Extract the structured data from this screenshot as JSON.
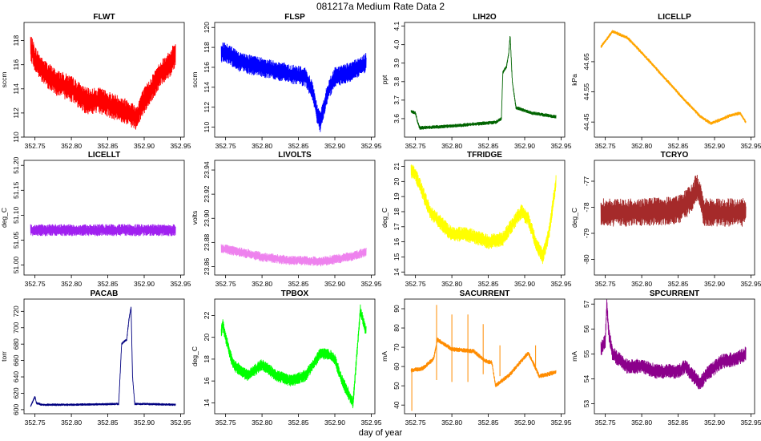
{
  "figure": {
    "title": "081217a   Medium Rate Data 2",
    "xlabel": "day of year"
  },
  "chart_data": [
    {
      "type": "line",
      "title": "FLWT",
      "ylabel": "sccm",
      "color": "#ff0000",
      "xlim": [
        352.735,
        352.955
      ],
      "ylim": [
        110,
        119.5
      ],
      "xticks": [
        352.75,
        352.8,
        352.85,
        352.9,
        352.95
      ],
      "yticks": [
        110,
        112,
        114,
        116,
        118
      ],
      "noise": 1.1,
      "series": [
        {
          "x": [
            352.744,
            352.75,
            352.76,
            352.78,
            352.8,
            352.82,
            352.84,
            352.86,
            352.88,
            352.89,
            352.895,
            352.91,
            352.925,
            352.935,
            352.943
          ],
          "y": [
            117.5,
            116.5,
            115.5,
            114.5,
            114.0,
            113.0,
            113.0,
            112.5,
            112.0,
            111.5,
            112.5,
            114.0,
            115.5,
            116.0,
            117.0
          ]
        }
      ]
    },
    {
      "type": "line",
      "title": "FLSP",
      "ylabel": "sccm",
      "color": "#0000ff",
      "xlim": [
        352.735,
        352.955
      ],
      "ylim": [
        109,
        120.5
      ],
      "xticks": [
        352.75,
        352.8,
        352.85,
        352.9,
        352.95
      ],
      "yticks": [
        110,
        112,
        114,
        116,
        118,
        120
      ],
      "noise": 1.0,
      "series": [
        {
          "x": [
            352.744,
            352.75,
            352.77,
            352.8,
            352.83,
            352.86,
            352.87,
            352.875,
            352.88,
            352.89,
            352.9,
            352.92,
            352.943
          ],
          "y": [
            117.5,
            117.5,
            116.5,
            116.0,
            115.5,
            115.0,
            113.5,
            111.5,
            110.5,
            113.5,
            115.0,
            115.5,
            116.5
          ]
        }
      ]
    },
    {
      "type": "line",
      "title": "LIH2O",
      "ylabel": "ppt",
      "color": "#006400",
      "xlim": [
        352.735,
        352.955
      ],
      "ylim": [
        3.5,
        4.12
      ],
      "xticks": [
        352.75,
        352.8,
        352.85,
        352.9,
        352.95
      ],
      "yticks": [
        3.6,
        3.7,
        3.8,
        3.9,
        4.0,
        4.1
      ],
      "noise": 0.01,
      "series": [
        {
          "x": [
            352.744,
            352.75,
            352.753,
            352.756,
            352.8,
            352.86,
            352.868,
            352.87,
            352.875,
            352.878,
            352.88,
            352.883,
            352.888,
            352.91,
            352.943
          ],
          "y": [
            3.64,
            3.63,
            3.58,
            3.55,
            3.56,
            3.58,
            3.6,
            3.85,
            3.88,
            3.95,
            4.05,
            3.8,
            3.66,
            3.63,
            3.61
          ]
        }
      ]
    },
    {
      "type": "line",
      "title": "LICELLP",
      "ylabel": "kPa",
      "color": "#ffa500",
      "xlim": [
        352.735,
        352.955
      ],
      "ylim": [
        44.4,
        44.78
      ],
      "xticks": [
        352.75,
        352.8,
        352.85,
        352.9,
        352.95
      ],
      "yticks": [
        44.45,
        44.55,
        44.65
      ],
      "noise": 0.006,
      "series": [
        {
          "x": [
            352.744,
            352.76,
            352.78,
            352.8,
            352.83,
            352.86,
            352.88,
            352.895,
            352.9,
            352.91,
            352.92,
            352.935,
            352.943
          ],
          "y": [
            44.7,
            44.75,
            44.73,
            44.68,
            44.6,
            44.52,
            44.47,
            44.445,
            44.45,
            44.46,
            44.47,
            44.48,
            44.45
          ]
        }
      ]
    },
    {
      "type": "line",
      "title": "LICELLT",
      "ylabel": "deg_C",
      "color": "#a020f0",
      "xlim": [
        352.735,
        352.955
      ],
      "ylim": [
        50.98,
        51.21
      ],
      "xticks": [
        352.75,
        352.8,
        352.85,
        352.9,
        352.95
      ],
      "yticks": [
        51.0,
        51.05,
        51.1,
        51.15,
        51.2
      ],
      "noise": 0.012,
      "series": [
        {
          "x": [
            352.744,
            352.943
          ],
          "y": [
            51.07,
            51.07
          ]
        }
      ]
    },
    {
      "type": "line",
      "title": "LIVOLTS",
      "ylabel": "volts",
      "color": "#ee82ee",
      "xlim": [
        352.735,
        352.955
      ],
      "ylim": [
        23.853,
        23.948
      ],
      "xticks": [
        352.75,
        352.8,
        352.85,
        352.9,
        352.95
      ],
      "yticks": [
        23.86,
        23.88,
        23.9,
        23.92,
        23.94
      ],
      "noise": 0.004,
      "series": [
        {
          "x": [
            352.744,
            352.77,
            352.8,
            352.84,
            352.86,
            352.88,
            352.9,
            352.92,
            352.943
          ],
          "y": [
            23.875,
            23.872,
            23.868,
            23.865,
            23.865,
            23.864,
            23.866,
            23.868,
            23.872
          ]
        }
      ]
    },
    {
      "type": "line",
      "title": "TFRIDGE",
      "ylabel": "deg_C",
      "color": "#ffff00",
      "xlim": [
        352.735,
        352.955
      ],
      "ylim": [
        13.8,
        21.4
      ],
      "xticks": [
        352.75,
        352.8,
        352.85,
        352.9,
        352.95
      ],
      "yticks": [
        14,
        15,
        16,
        17,
        18,
        19,
        20,
        21
      ],
      "noise": 0.5,
      "series": [
        {
          "x": [
            352.744,
            352.75,
            352.77,
            352.8,
            352.82,
            352.85,
            352.87,
            352.885,
            352.895,
            352.905,
            352.915,
            352.925,
            352.933,
            352.943
          ],
          "y": [
            20.7,
            20.5,
            18.0,
            16.5,
            16.5,
            16.0,
            16.2,
            17.3,
            18.0,
            17.5,
            16.0,
            15.0,
            16.5,
            20.0
          ]
        }
      ]
    },
    {
      "type": "line",
      "title": "TCRYO",
      "ylabel": "deg_C",
      "color": "#a52a2a",
      "xlim": [
        352.735,
        352.955
      ],
      "ylim": [
        -80.6,
        -76.2
      ],
      "xticks": [
        352.75,
        352.8,
        352.85,
        352.9,
        352.95
      ],
      "yticks": [
        -80,
        -79,
        -78,
        -77
      ],
      "noise": 0.55,
      "series": [
        {
          "x": [
            352.744,
            352.8,
            352.85,
            352.86,
            352.87,
            352.875,
            352.88,
            352.885,
            352.9,
            352.943
          ],
          "y": [
            -78.2,
            -78.2,
            -78.1,
            -77.9,
            -77.6,
            -77.2,
            -77.5,
            -78.2,
            -78.2,
            -78.2
          ]
        }
      ]
    },
    {
      "type": "line",
      "title": "PACAB",
      "ylabel": "torr",
      "color": "#000080",
      "xlim": [
        352.735,
        352.955
      ],
      "ylim": [
        595,
        735
      ],
      "xticks": [
        352.75,
        352.8,
        352.85,
        352.9,
        352.95
      ],
      "yticks": [
        600,
        620,
        640,
        660,
        680,
        700,
        720
      ],
      "noise": 1.5,
      "series": [
        {
          "x": [
            352.744,
            352.748,
            352.75,
            352.752,
            352.76,
            352.8,
            352.865,
            352.869,
            352.872,
            352.876,
            352.879,
            352.882,
            352.884,
            352.887,
            352.9,
            352.943
          ],
          "y": [
            604,
            612,
            616,
            608,
            606,
            606,
            607,
            680,
            683,
            685,
            710,
            725,
            640,
            607,
            607,
            606
          ]
        }
      ]
    },
    {
      "type": "line",
      "title": "TPBOX",
      "ylabel": "deg_C",
      "color": "#00ff00",
      "xlim": [
        352.735,
        352.955
      ],
      "ylim": [
        13,
        23.5
      ],
      "xticks": [
        352.75,
        352.8,
        352.85,
        352.9,
        352.95
      ],
      "yticks": [
        14,
        16,
        18,
        20,
        22
      ],
      "noise": 0.55,
      "series": [
        {
          "x": [
            352.744,
            352.746,
            352.75,
            352.76,
            352.78,
            352.8,
            352.82,
            352.84,
            352.86,
            352.88,
            352.89,
            352.9,
            352.91,
            352.925,
            352.935,
            352.943
          ],
          "y": [
            20.5,
            21.2,
            20.0,
            17.5,
            16.5,
            17.5,
            16.5,
            16.0,
            16.5,
            18.5,
            18.5,
            18.0,
            16.0,
            14.0,
            22.5,
            20.5
          ]
        }
      ]
    },
    {
      "type": "line",
      "title": "SACURRENT",
      "ylabel": "mA",
      "color": "#ff8c00",
      "xlim": [
        352.735,
        352.955
      ],
      "ylim": [
        35.5,
        95
      ],
      "xticks": [
        352.75,
        352.8,
        352.85,
        352.9,
        352.95
      ],
      "yticks": [
        40,
        50,
        60,
        70,
        80,
        90
      ],
      "noise": 1.2,
      "series": [
        {
          "x": [
            352.744,
            352.76,
            352.775,
            352.78,
            352.8,
            352.83,
            352.845,
            352.855,
            352.86,
            352.88,
            352.9,
            352.905,
            352.92,
            352.943
          ],
          "y": [
            58,
            59,
            64,
            74,
            69,
            68,
            63,
            62,
            50,
            56,
            65,
            67,
            55,
            57
          ]
        }
      ],
      "spikes": [
        {
          "x": 352.745,
          "lo": 37,
          "hi": 58
        },
        {
          "x": 352.779,
          "lo": 53,
          "hi": 92
        },
        {
          "x": 352.8,
          "lo": 52,
          "hi": 87
        },
        {
          "x": 352.822,
          "lo": 52,
          "hi": 87
        },
        {
          "x": 352.843,
          "lo": 56,
          "hi": 82
        },
        {
          "x": 352.866,
          "lo": 55,
          "hi": 71
        },
        {
          "x": 352.915,
          "lo": 58,
          "hi": 71
        }
      ]
    },
    {
      "type": "line",
      "title": "SPCURRENT",
      "ylabel": "mA",
      "color": "#8b008b",
      "xlim": [
        352.735,
        352.955
      ],
      "ylim": [
        52.6,
        57.2
      ],
      "xticks": [
        352.75,
        352.8,
        352.85,
        352.9,
        352.95
      ],
      "yticks": [
        53,
        54,
        55,
        56,
        57
      ],
      "noise": 0.3,
      "series": [
        {
          "x": [
            352.744,
            352.75,
            352.752,
            352.755,
            352.76,
            352.78,
            352.8,
            352.82,
            352.85,
            352.86,
            352.88,
            352.89,
            352.91,
            352.93,
            352.943
          ],
          "y": [
            55.2,
            55.5,
            57.0,
            55.8,
            55.0,
            54.5,
            54.5,
            54.3,
            54.3,
            54.5,
            53.8,
            54.2,
            54.7,
            54.8,
            55.0
          ]
        }
      ]
    }
  ]
}
